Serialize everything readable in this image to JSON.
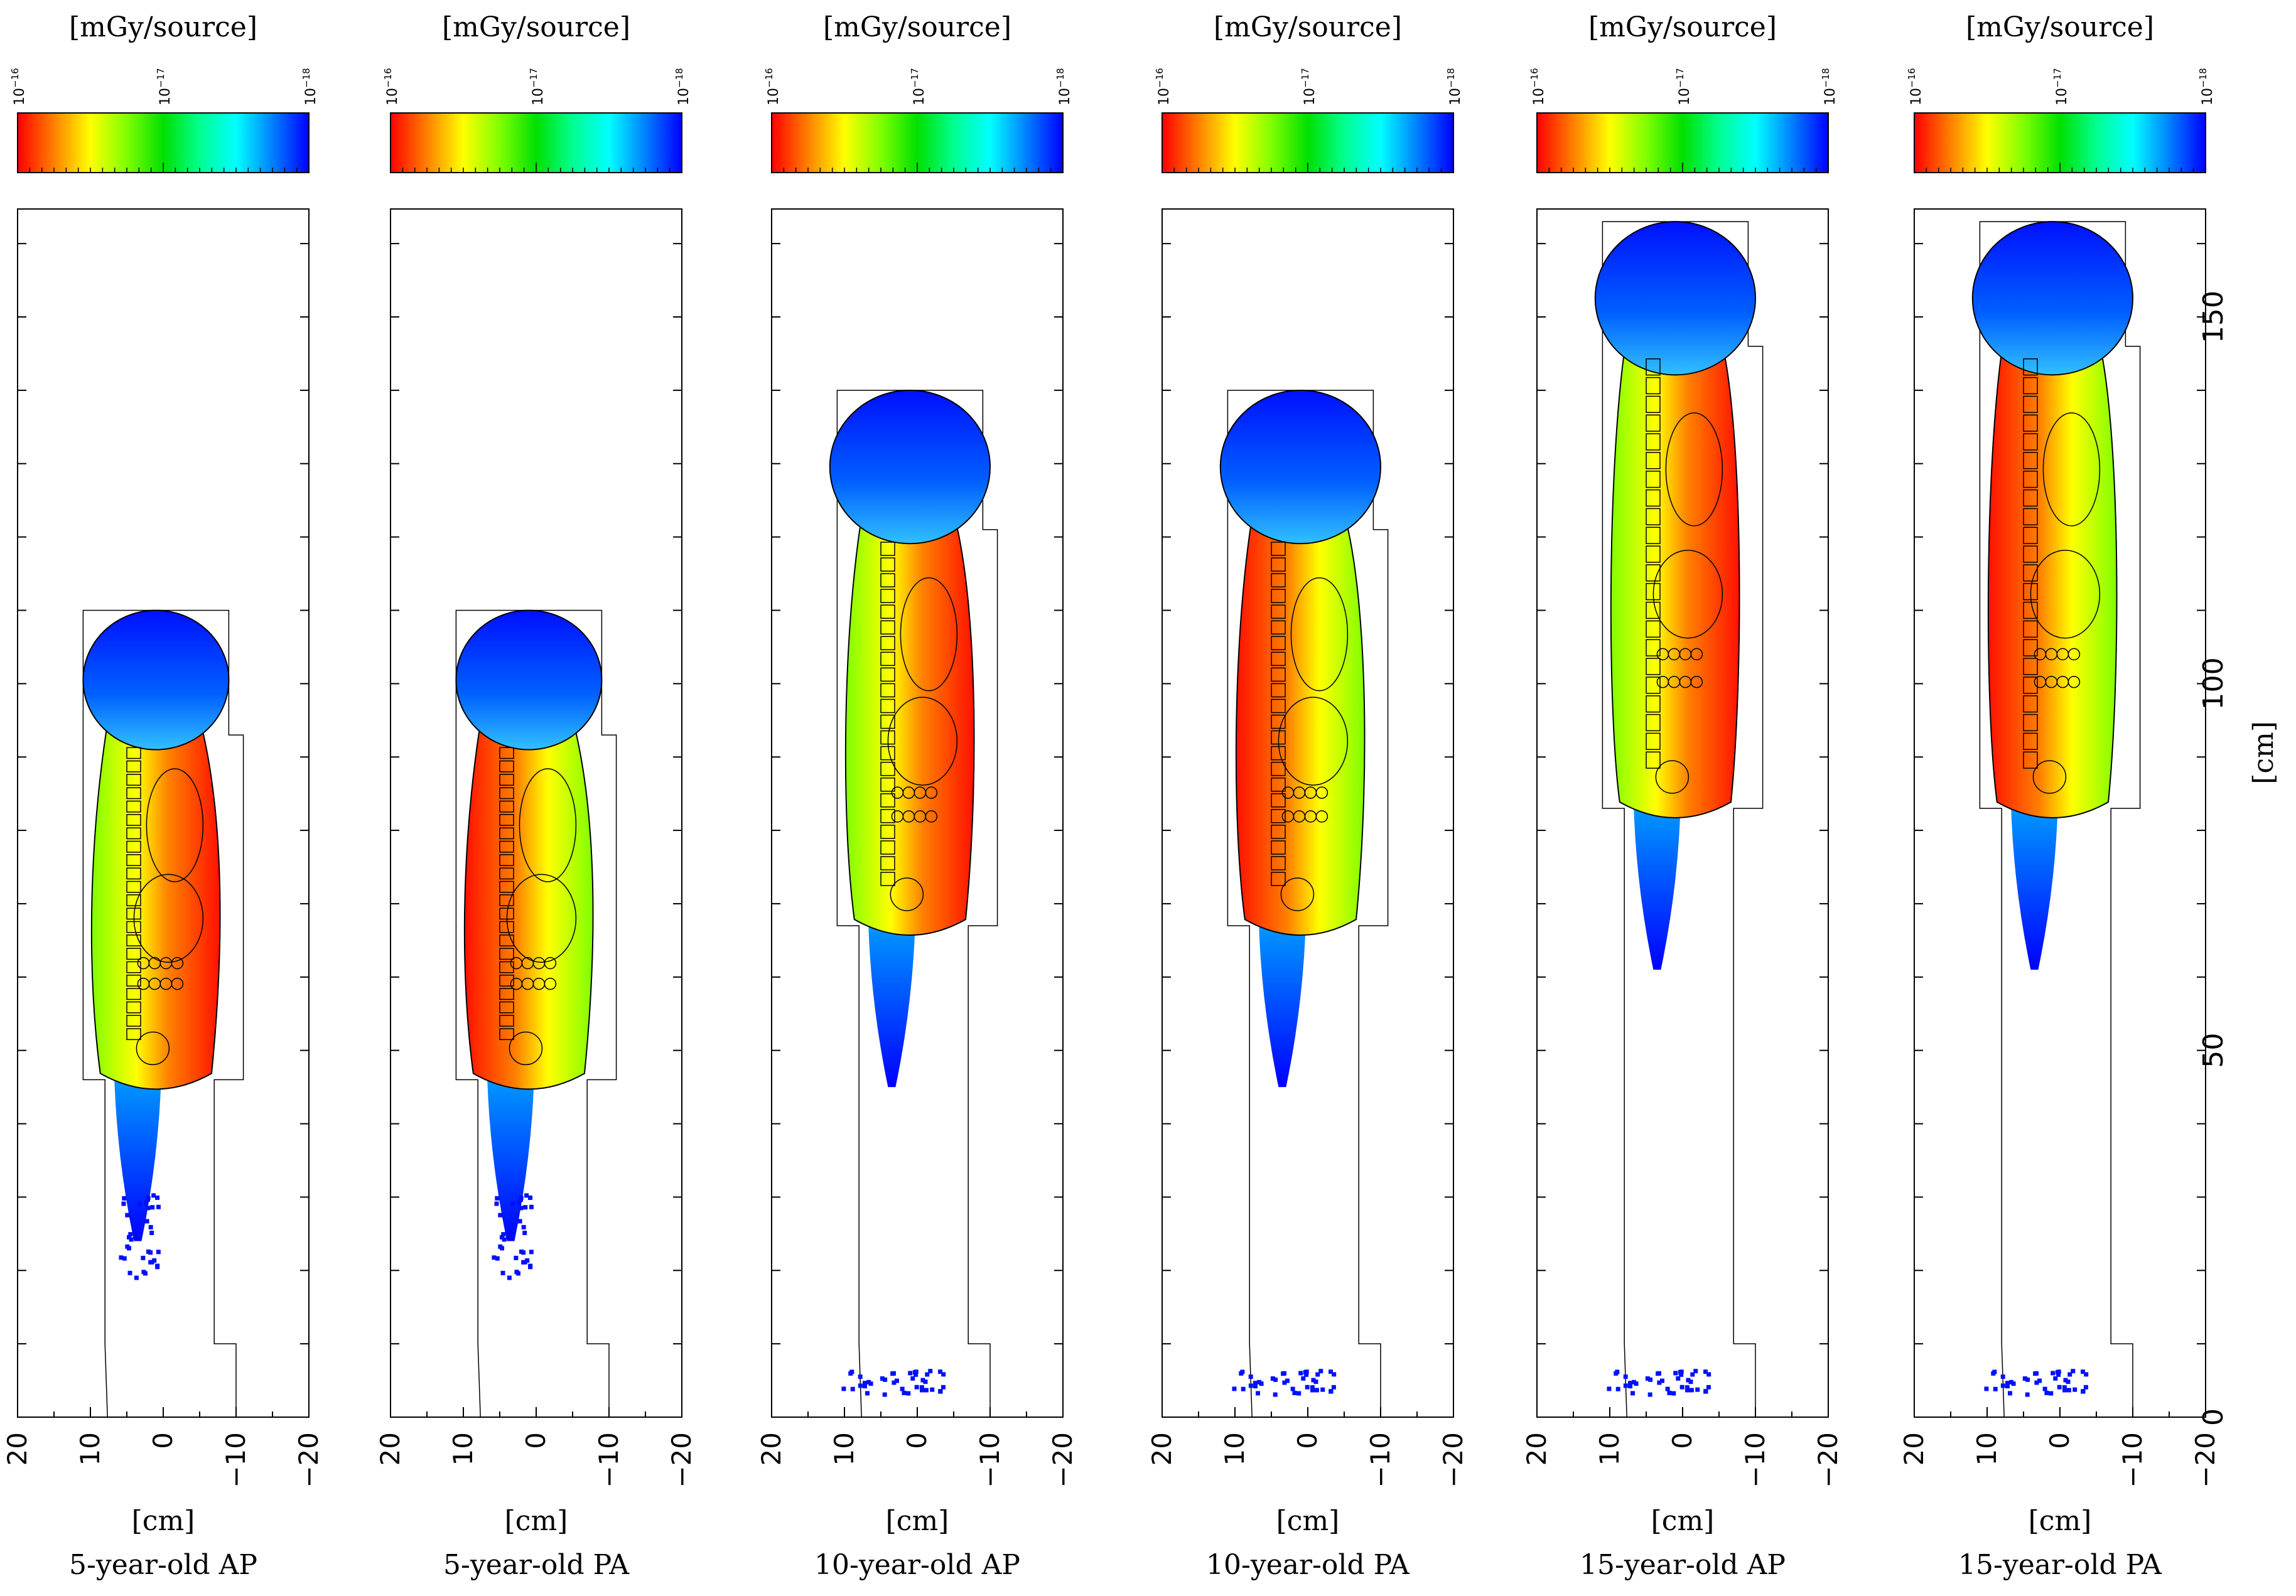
{
  "figure": {
    "unit_colorbar": "[mGy/source]",
    "unit_axis": "[cm]",
    "colorbar_ticks": [
      {
        "base": "10",
        "exp": "−16"
      },
      {
        "base": "10",
        "exp": "−17"
      },
      {
        "base": "10",
        "exp": "−18"
      }
    ],
    "x_ticks": [
      "20",
      "10",
      "0",
      "−10",
      "−20"
    ],
    "y_ticks": [
      "150",
      "100",
      "50",
      "0"
    ],
    "colors": {
      "scale": [
        "#ff0000",
        "#ff8000",
        "#ffff00",
        "#80ff00",
        "#00e000",
        "#00ff90",
        "#00ffff",
        "#0080ff",
        "#0000ff"
      ],
      "outline": "#000000"
    }
  },
  "panels": [
    {
      "caption": "5-year-old AP"
    },
    {
      "caption": "5-year-old PA"
    },
    {
      "caption": "10-year-old AP"
    },
    {
      "caption": "10-year-old PA"
    },
    {
      "caption": "15-year-old AP"
    },
    {
      "caption": "15-year-old PA"
    }
  ]
}
